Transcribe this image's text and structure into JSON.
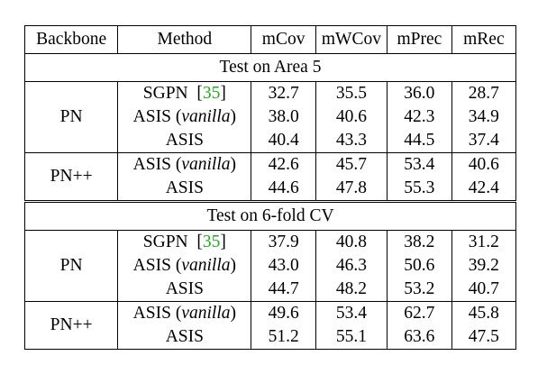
{
  "headers": [
    "Backbone",
    "Method",
    "mCov",
    "mWCov",
    "mPrec",
    "mRec"
  ],
  "sections": [
    {
      "title": "Test on Area 5",
      "groups": [
        {
          "backbone": "PN",
          "rows": [
            {
              "method": "SGPN",
              "cite": "35",
              "values": [
                "32.7",
                "35.5",
                "36.0",
                "28.7"
              ]
            },
            {
              "method": "ASIS",
              "variant": "vanilla",
              "values": [
                "38.0",
                "40.6",
                "42.3",
                "34.9"
              ]
            },
            {
              "method": "ASIS",
              "values": [
                "40.4",
                "43.3",
                "44.5",
                "37.4"
              ],
              "bold": true
            }
          ]
        },
        {
          "backbone": "PN++",
          "rows": [
            {
              "method": "ASIS",
              "variant": "vanilla",
              "values": [
                "42.6",
                "45.7",
                "53.4",
                "40.6"
              ]
            },
            {
              "method": "ASIS",
              "values": [
                "44.6",
                "47.8",
                "55.3",
                "42.4"
              ],
              "bold": true
            }
          ]
        }
      ]
    },
    {
      "title": "Test on 6-fold CV",
      "groups": [
        {
          "backbone": "PN",
          "rows": [
            {
              "method": "SGPN",
              "cite": "35",
              "values": [
                "37.9",
                "40.8",
                "38.2",
                "31.2"
              ]
            },
            {
              "method": "ASIS",
              "variant": "vanilla",
              "values": [
                "43.0",
                "46.3",
                "50.6",
                "39.2"
              ]
            },
            {
              "method": "ASIS",
              "values": [
                "44.7",
                "48.2",
                "53.2",
                "40.7"
              ],
              "bold": true
            }
          ]
        },
        {
          "backbone": "PN++",
          "rows": [
            {
              "method": "ASIS",
              "variant": "vanilla",
              "values": [
                "49.6",
                "53.4",
                "62.7",
                "45.8"
              ]
            },
            {
              "method": "ASIS",
              "values": [
                "51.2",
                "55.1",
                "63.6",
                "47.5"
              ],
              "bold": true
            }
          ]
        }
      ]
    }
  ]
}
